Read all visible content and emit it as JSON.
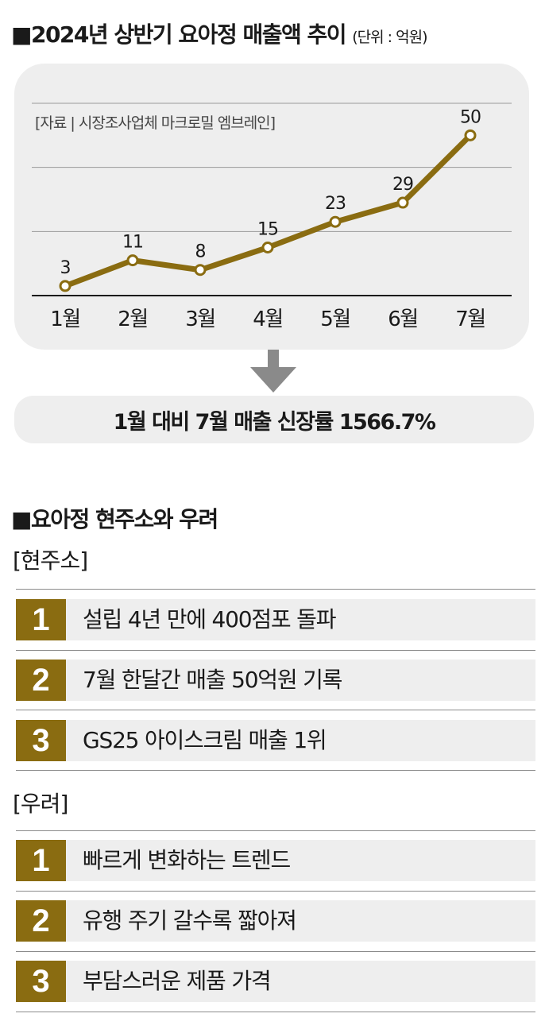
{
  "header": {
    "title": "■2024년 상반기 요아정 매출액 추이",
    "unit": "(단위 : 억원)"
  },
  "chart_data": {
    "type": "line",
    "categories": [
      "1월",
      "2월",
      "3월",
      "4월",
      "5월",
      "6월",
      "7월"
    ],
    "values": [
      3,
      11,
      8,
      15,
      23,
      29,
      50
    ],
    "ylim": [
      0,
      60
    ],
    "grid": true,
    "source": "[자료 | 시장조사업체 마크로밀 엠브레인]",
    "line_color": "#8a6c11"
  },
  "summary": {
    "text": "1월 대비 7월 매출 신장률 1566.7%"
  },
  "section": {
    "title": "■요아정 현주소와 우려",
    "status_label": "[현주소]",
    "status_items": [
      {
        "num": "1",
        "text": "설립 4년 만에 400점포 돌파"
      },
      {
        "num": "2",
        "text": "7월 한달간 매출 50억원 기록"
      },
      {
        "num": "3",
        "text": "GS25 아이스크림 매출 1위"
      }
    ],
    "concern_label": "[우려]",
    "concern_items": [
      {
        "num": "1",
        "text": "빠르게 변화하는 트렌드"
      },
      {
        "num": "2",
        "text": "유행 주기 갈수록 짧아져"
      },
      {
        "num": "3",
        "text": "부담스러운 제품 가격"
      }
    ]
  },
  "colors": {
    "accent": "#8a6c11",
    "panel": "#eeeeee",
    "arrow": "#8a8a8a"
  }
}
